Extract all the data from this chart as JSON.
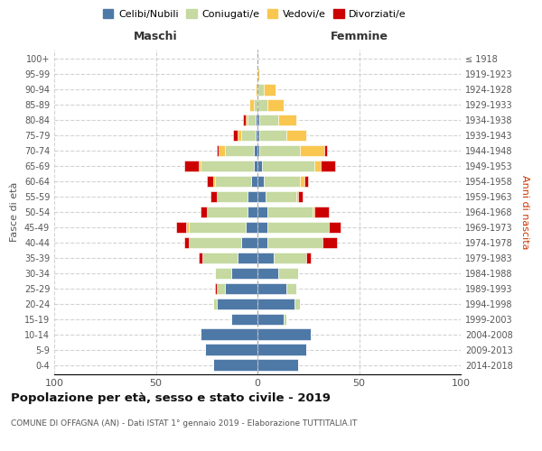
{
  "age_groups": [
    "0-4",
    "5-9",
    "10-14",
    "15-19",
    "20-24",
    "25-29",
    "30-34",
    "35-39",
    "40-44",
    "45-49",
    "50-54",
    "55-59",
    "60-64",
    "65-69",
    "70-74",
    "75-79",
    "80-84",
    "85-89",
    "90-94",
    "95-99",
    "100+"
  ],
  "birth_years": [
    "2014-2018",
    "2009-2013",
    "2004-2008",
    "1999-2003",
    "1994-1998",
    "1989-1993",
    "1984-1988",
    "1979-1983",
    "1974-1978",
    "1969-1973",
    "1964-1968",
    "1959-1963",
    "1954-1958",
    "1949-1953",
    "1944-1948",
    "1939-1943",
    "1934-1938",
    "1929-1933",
    "1924-1928",
    "1919-1923",
    "≤ 1918"
  ],
  "colors": {
    "celibi": "#4e79a7",
    "coniugati": "#c5d9a0",
    "vedovi": "#f9c74f",
    "divorziati": "#cc0000"
  },
  "maschi": {
    "celibi": [
      22,
      26,
      28,
      13,
      20,
      16,
      13,
      10,
      8,
      6,
      5,
      5,
      3,
      2,
      2,
      1,
      1,
      0,
      0,
      0,
      0
    ],
    "coniugati": [
      0,
      0,
      0,
      0,
      2,
      4,
      8,
      17,
      26,
      28,
      20,
      15,
      18,
      26,
      14,
      7,
      4,
      2,
      0,
      0,
      0
    ],
    "vedovi": [
      0,
      0,
      0,
      0,
      0,
      0,
      0,
      0,
      0,
      1,
      0,
      0,
      1,
      1,
      3,
      2,
      1,
      2,
      1,
      0,
      0
    ],
    "divorziati": [
      0,
      0,
      0,
      0,
      0,
      1,
      0,
      2,
      2,
      5,
      3,
      3,
      3,
      7,
      1,
      2,
      1,
      0,
      0,
      0,
      0
    ]
  },
  "femmine": {
    "celibi": [
      20,
      24,
      26,
      13,
      18,
      14,
      10,
      8,
      5,
      5,
      5,
      4,
      3,
      2,
      1,
      1,
      1,
      0,
      0,
      0,
      0
    ],
    "coniugati": [
      0,
      0,
      0,
      1,
      3,
      5,
      10,
      16,
      27,
      30,
      22,
      15,
      18,
      26,
      20,
      13,
      9,
      5,
      3,
      0,
      0
    ],
    "vedovi": [
      0,
      0,
      0,
      0,
      0,
      0,
      0,
      0,
      0,
      0,
      1,
      1,
      2,
      3,
      12,
      10,
      9,
      8,
      6,
      1,
      0
    ],
    "divorziati": [
      0,
      0,
      0,
      0,
      0,
      0,
      0,
      2,
      7,
      6,
      7,
      2,
      2,
      7,
      1,
      0,
      0,
      0,
      0,
      0,
      0
    ]
  },
  "xlim": 100,
  "title": "Popolazione per età, sesso e stato civile - 2019",
  "subtitle": "COMUNE DI OFFAGNA (AN) - Dati ISTAT 1° gennaio 2019 - Elaborazione TUTTITALIA.IT",
  "ylabel_left": "Fasce di età",
  "ylabel_right": "Anni di nascita",
  "xlabel_left": "Maschi",
  "xlabel_right": "Femmine",
  "legend_labels": [
    "Celibi/Nubili",
    "Coniugati/e",
    "Vedovi/e",
    "Divorziati/e"
  ],
  "bg_color": "#ffffff",
  "grid_color": "#c8c8c8"
}
